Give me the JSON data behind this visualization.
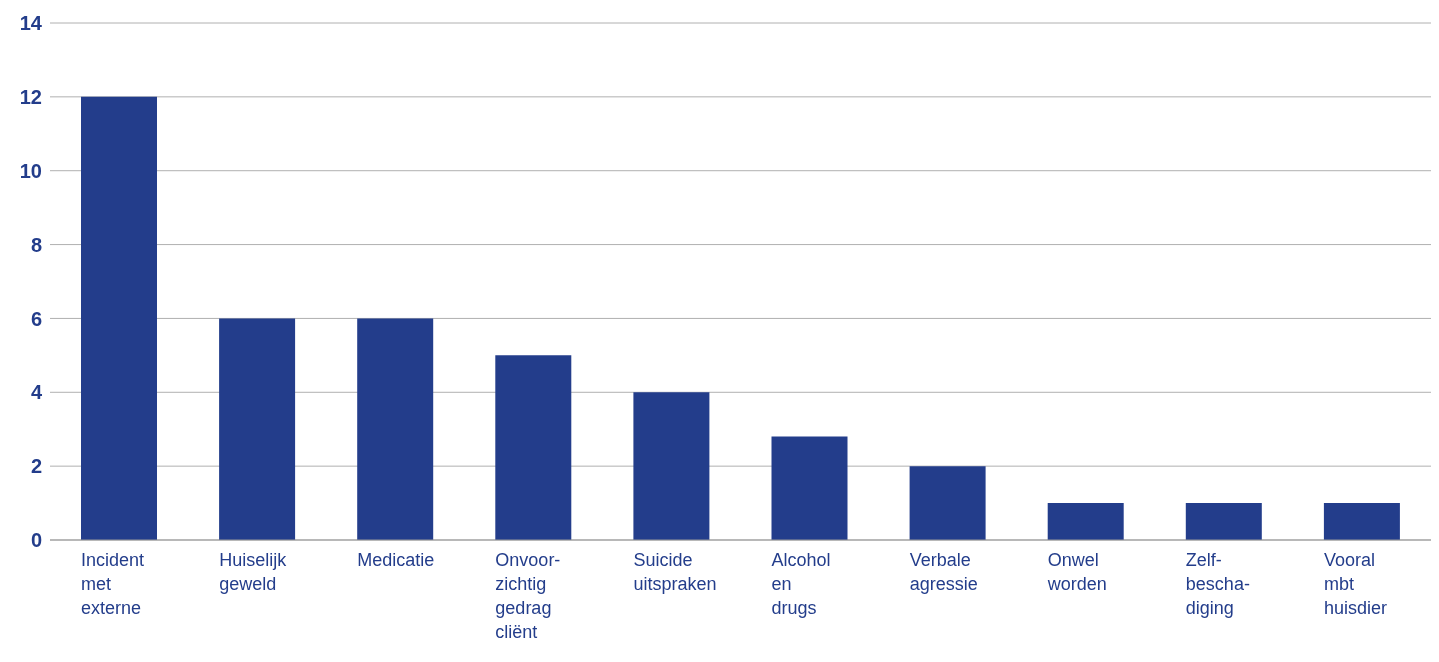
{
  "chart_data": {
    "type": "bar",
    "categories": [
      "Incident\nmet\nexterne",
      "Huiselijk\ngeweld",
      "Medicatie",
      "Onvoor-\nzichtig\ngedrag\ncliënt",
      "Suicide\nuitspraken",
      "Alcohol\nen\ndrugs",
      "Verbale\nagressie",
      "Onwel\nworden",
      "Zelf-\nbescha-\ndiging",
      "Vooral\nmbt\nhuisdier"
    ],
    "values": [
      12,
      6,
      6,
      5,
      4,
      2.8,
      2,
      1,
      1,
      1
    ],
    "color": "#233d8b",
    "ylim": [
      0,
      14
    ],
    "yticks": [
      0,
      2,
      4,
      6,
      8,
      10,
      12,
      14
    ],
    "grid": "y",
    "legend": false
  }
}
